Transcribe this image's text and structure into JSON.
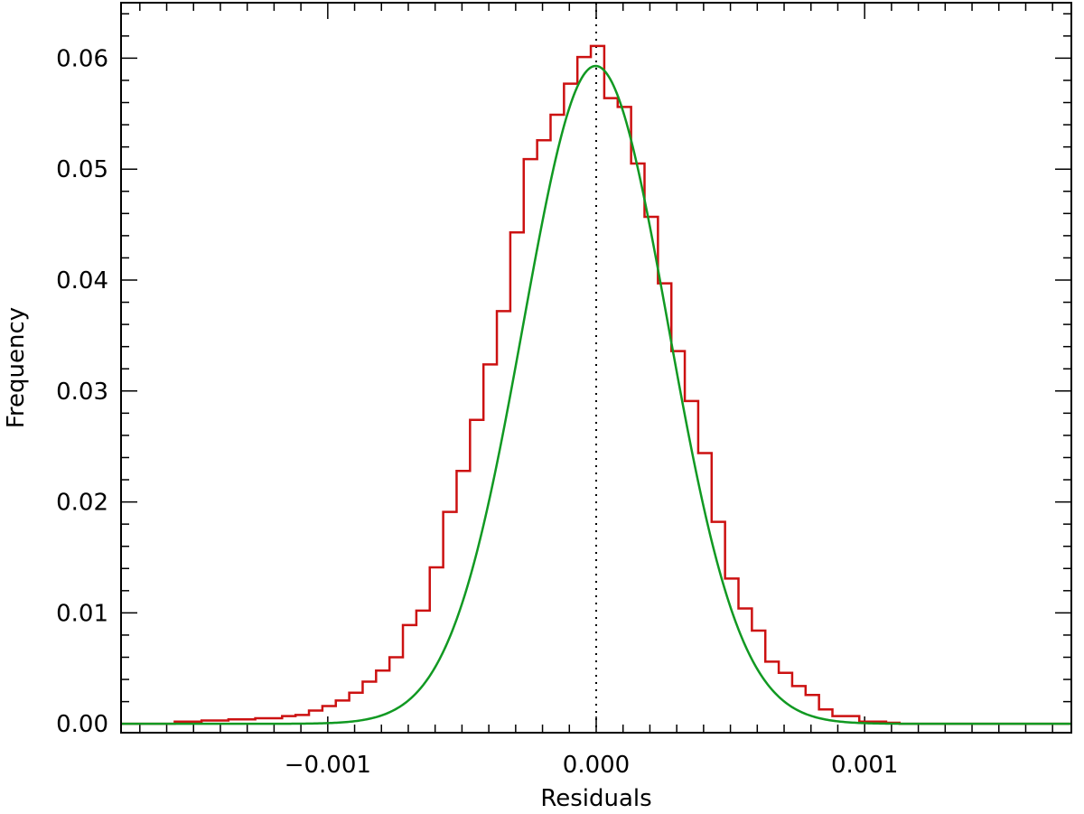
{
  "chart_data": {
    "type": "histogram",
    "title": "",
    "xlabel": "Residuals",
    "ylabel": "Frequency",
    "xlim": [
      -0.00177,
      0.00177
    ],
    "ylim": [
      -0.0008,
      0.065
    ],
    "x_ticks": [
      {
        "value": -0.001,
        "label": "−0.001"
      },
      {
        "value": 0.0,
        "label": "0.000"
      },
      {
        "value": 0.001,
        "label": "0.001"
      }
    ],
    "y_ticks": [
      {
        "value": 0.0,
        "label": "0.00"
      },
      {
        "value": 0.01,
        "label": "0.01"
      },
      {
        "value": 0.02,
        "label": "0.02"
      },
      {
        "value": 0.03,
        "label": "0.03"
      },
      {
        "value": 0.04,
        "label": "0.04"
      },
      {
        "value": 0.05,
        "label": "0.05"
      },
      {
        "value": 0.06,
        "label": "0.06"
      }
    ],
    "x_minor_step": 0.0001,
    "y_minor_step": 0.002,
    "reference_line_x": 0.0,
    "histogram": {
      "color": "#cc1111",
      "bin_edges": [
        -0.00157,
        -0.00147,
        -0.00137,
        -0.00127,
        -0.00117,
        -0.00112,
        -0.00107,
        -0.00102,
        -0.00097,
        -0.00092,
        -0.00087,
        -0.00082,
        -0.00077,
        -0.00072,
        -0.00067,
        -0.00062,
        -0.00057,
        -0.00052,
        -0.00047,
        -0.00042,
        -0.00037,
        -0.00032,
        -0.00027,
        -0.00022,
        -0.00017,
        -0.00012,
        -7e-05,
        -2e-05,
        3e-05,
        8e-05,
        0.00013,
        0.00018,
        0.00023,
        0.00028,
        0.00033,
        0.00038,
        0.00043,
        0.00048,
        0.00053,
        0.00058,
        0.00063,
        0.00068,
        0.00073,
        0.00078,
        0.00083,
        0.00088,
        0.00093,
        0.00098,
        0.00103,
        0.00108,
        0.00113
      ],
      "counts": [
        0.0002,
        0.0003,
        0.0004,
        0.0005,
        0.0007,
        0.0008,
        0.0012,
        0.0016,
        0.0021,
        0.0028,
        0.0038,
        0.0048,
        0.006,
        0.0089,
        0.0102,
        0.0141,
        0.0191,
        0.0228,
        0.0274,
        0.0324,
        0.0372,
        0.0443,
        0.0509,
        0.0526,
        0.0549,
        0.0577,
        0.0601,
        0.0611,
        0.0564,
        0.0556,
        0.0505,
        0.0457,
        0.0397,
        0.0336,
        0.0291,
        0.0244,
        0.0182,
        0.0131,
        0.0104,
        0.0084,
        0.0056,
        0.0046,
        0.0034,
        0.0026,
        0.0013,
        0.0007,
        0.0007,
        0.0002,
        0.0002,
        0.0001
      ]
    },
    "fit_curve": {
      "type": "gaussian",
      "color": "#119922",
      "amplitude": 0.0593,
      "mean": -2e-06,
      "sigma": 0.00027
    }
  }
}
